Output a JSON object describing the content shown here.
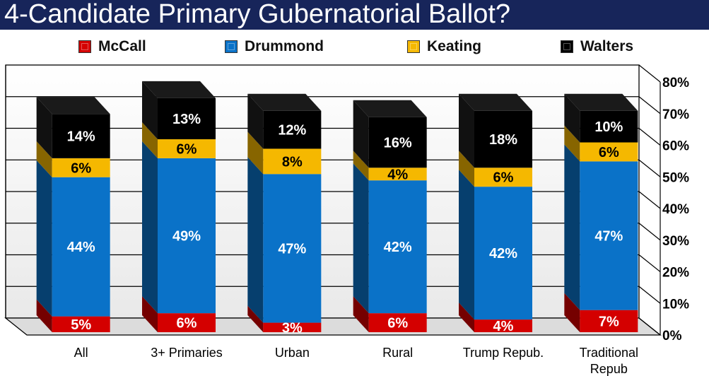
{
  "header": {
    "title": "4-Candidate Primary Gubernatorial Ballot?"
  },
  "chart_data": {
    "type": "bar",
    "stacked": true,
    "title": "4-Candidate Primary Gubernatorial Ballot?",
    "categories": [
      "All",
      "3+ Primaries",
      "Urban",
      "Rural",
      "Trump Repub.",
      "Traditional Repub"
    ],
    "series": [
      {
        "name": "McCall",
        "color": "#d40000",
        "values": [
          5,
          6,
          3,
          6,
          4,
          7
        ]
      },
      {
        "name": "Drummond",
        "color": "#0a72c8",
        "values": [
          44,
          49,
          47,
          42,
          42,
          47
        ]
      },
      {
        "name": "Keating",
        "color": "#f5b800",
        "values": [
          6,
          6,
          8,
          4,
          6,
          6
        ]
      },
      {
        "name": "Walters",
        "color": "#000000",
        "values": [
          14,
          13,
          12,
          16,
          18,
          10
        ]
      }
    ],
    "value_labels": [
      [
        "5%",
        "44%",
        "6%",
        "14%"
      ],
      [
        "6%",
        "49%",
        "6%",
        "13%"
      ],
      [
        "3%",
        "47%",
        "8%",
        "12%"
      ],
      [
        "6%",
        "42%",
        "4%",
        "16%"
      ],
      [
        "4%",
        "42%",
        "6%",
        "18%"
      ],
      [
        "7%",
        "47%",
        "6%",
        "10%"
      ]
    ],
    "y_ticks": [
      "0%",
      "10%",
      "20%",
      "30%",
      "40%",
      "50%",
      "60%",
      "70%",
      "80%"
    ],
    "ylim": [
      0,
      80
    ],
    "grid": true,
    "legend_position": "top"
  }
}
